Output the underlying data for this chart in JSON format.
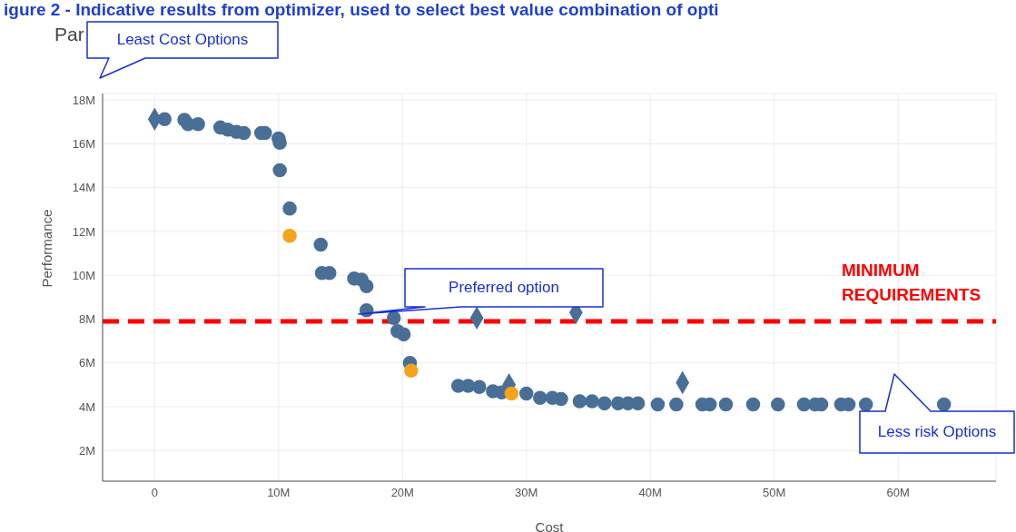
{
  "chart_data": {
    "type": "scatter",
    "title": "igure 2 - Indicative results from optimizer, used to select best value combination of opti",
    "subtitle": "Par",
    "xlabel": "Cost",
    "ylabel": "Performance",
    "xlim": [
      -4200000,
      67900000
    ],
    "ylim": [
      600000,
      18300000
    ],
    "xticks": [
      {
        "value": 0,
        "label": "0"
      },
      {
        "value": 10000000,
        "label": "10M"
      },
      {
        "value": 20000000,
        "label": "20M"
      },
      {
        "value": 30000000,
        "label": "30M"
      },
      {
        "value": 40000000,
        "label": "40M"
      },
      {
        "value": 50000000,
        "label": "50M"
      },
      {
        "value": 60000000,
        "label": "60M"
      }
    ],
    "yticks": [
      {
        "value": 2000000,
        "label": "2M"
      },
      {
        "value": 4000000,
        "label": "4M"
      },
      {
        "value": 6000000,
        "label": "6M"
      },
      {
        "value": 8000000,
        "label": "8M"
      },
      {
        "value": 10000000,
        "label": "10M"
      },
      {
        "value": 12000000,
        "label": "12M"
      },
      {
        "value": 14000000,
        "label": "14M"
      },
      {
        "value": 16000000,
        "label": "16M"
      },
      {
        "value": 18000000,
        "label": "18M"
      }
    ],
    "grid": true,
    "series": [
      {
        "color": "#4a6f96",
        "marker": "circle",
        "x": [
          800000,
          2400000,
          2700000,
          3500000,
          5300000,
          5900000,
          6600000,
          7200000,
          8600000,
          8900000,
          10000000,
          10100000,
          10100000,
          10900000,
          13400000,
          13500000,
          14100000,
          16100000,
          16700000,
          17100000,
          17100000,
          19300000,
          19600000,
          20100000,
          20600000,
          24500000,
          25300000,
          26200000,
          27300000,
          28000000,
          30000000,
          31100000,
          32100000,
          32800000,
          34300000,
          35300000,
          36300000,
          37400000,
          38200000,
          39000000,
          40600000,
          42100000,
          44200000,
          44800000,
          46100000,
          48300000,
          50300000,
          52400000,
          53300000,
          53800000,
          55400000,
          56000000,
          57400000,
          63700000
        ],
        "values": [
          17130000,
          17100000,
          16900000,
          16900000,
          16750000,
          16650000,
          16550000,
          16500000,
          16500000,
          16500000,
          16250000,
          16050000,
          14800000,
          13050000,
          11400000,
          10100000,
          10100000,
          9850000,
          9800000,
          9500000,
          8400000,
          8050000,
          7450000,
          7300000,
          6000000,
          4950000,
          4950000,
          4900000,
          4700000,
          4650000,
          4600000,
          4400000,
          4400000,
          4350000,
          4250000,
          4250000,
          4150000,
          4150000,
          4150000,
          4150000,
          4100000,
          4100000,
          4100000,
          4100000,
          4100000,
          4100000,
          4100000,
          4100000,
          4100000,
          4100000,
          4100000,
          4100000,
          4100000,
          4100000
        ]
      },
      {
        "color": "#4a6f96",
        "marker": "diamond",
        "x": [
          0,
          26000000,
          34000000,
          28600000,
          42600000
        ],
        "values": [
          17130000,
          8050000,
          8300000,
          5000000,
          5100000
        ]
      },
      {
        "color": "#f5a31a",
        "marker": "circle",
        "x": [
          10900000,
          20700000,
          28800000
        ],
        "values": [
          11800000,
          5650000,
          4600000
        ]
      }
    ],
    "ref_lines": [
      {
        "axis": "y",
        "value": 7900000,
        "label": "MINIMUM REQUIREMENTS",
        "color": "#ff0000",
        "line_style": "dashed"
      }
    ],
    "annotations": [
      "Least Cost Options",
      "Preferred option",
      "Less risk Options"
    ]
  }
}
